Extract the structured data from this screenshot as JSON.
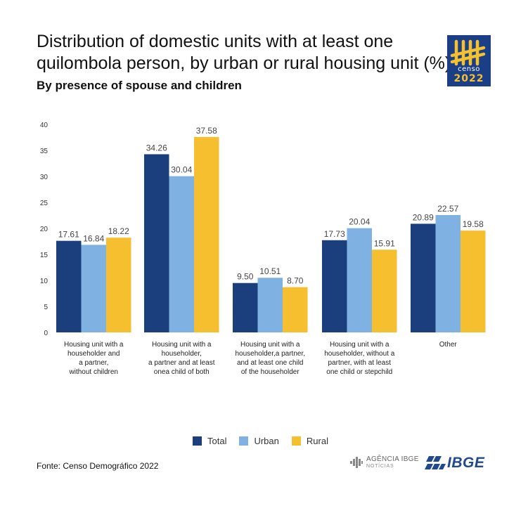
{
  "title": "Distribution of domestic units with at least one quilombola person, by urban or rural housing unit (%)",
  "subtitle": "By presence of spouse and children",
  "source": "Fonte: Censo Demográfico 2022",
  "logo": {
    "word": "censo",
    "year": "2022"
  },
  "agencia": {
    "line1": "AGÊNCIA IBGE",
    "line2": "NOTÍCIAS"
  },
  "ibge": "IBGE",
  "colors": {
    "Total": "#1b3f7d",
    "Urban": "#7fb2e3",
    "Rural": "#f6bf2f"
  },
  "chart_data": {
    "type": "bar",
    "categories": [
      [
        "Housing unit with a",
        "householder and",
        "a partner,",
        "without children"
      ],
      [
        "Housing unit with a",
        "householder,",
        "a partner and at least",
        "onea child of both"
      ],
      [
        "Housing unit with a",
        "householder,a partner,",
        "and at least one child",
        "of the householder"
      ],
      [
        "Housing unit with a",
        "householder, without a",
        "partner, with at least",
        "one child or stepchild"
      ],
      [
        "Other"
      ]
    ],
    "series": [
      {
        "name": "Total",
        "values": [
          17.61,
          34.26,
          9.5,
          17.73,
          20.89
        ],
        "labels": [
          "17.61",
          "34.26",
          "9.50",
          "17.73",
          "20.89"
        ]
      },
      {
        "name": "Urban",
        "values": [
          16.84,
          30.04,
          10.51,
          20.04,
          22.57
        ],
        "labels": [
          "16.84",
          "30.04",
          "10.51",
          "20.04",
          "22.57"
        ]
      },
      {
        "name": "Rural",
        "values": [
          18.22,
          37.58,
          8.7,
          15.91,
          19.58
        ],
        "labels": [
          "18.22",
          "37.58",
          "8.70",
          "15.91",
          "19.58"
        ]
      }
    ],
    "yticks": [
      "0",
      "5",
      "10",
      "15",
      "20",
      "25",
      "30",
      "35",
      "40"
    ],
    "ylim": [
      0,
      40
    ],
    "grid": false,
    "legend": "bottom-center"
  }
}
